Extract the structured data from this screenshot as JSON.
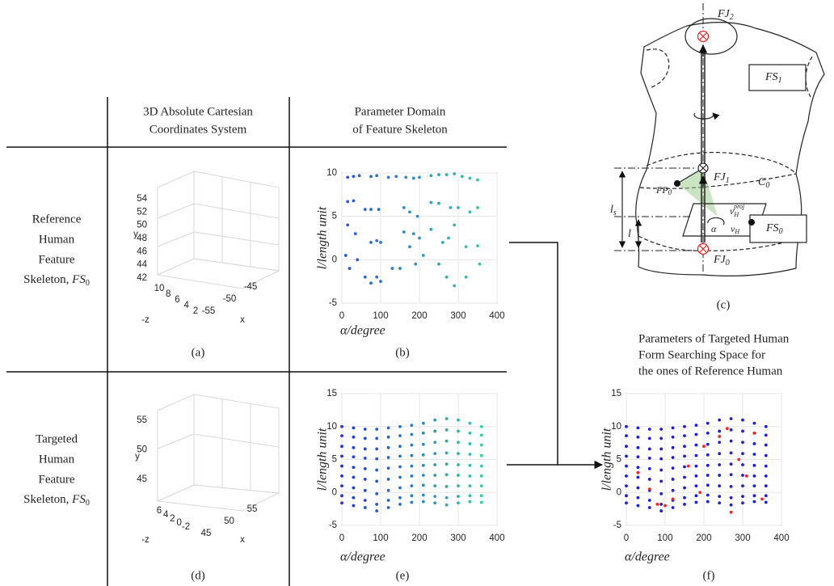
{
  "table": {
    "headers": [
      [
        "3D Absolute Cartesian",
        "Coordinates System"
      ],
      [
        "Parameter Domain",
        "of Feature Skeleton"
      ]
    ],
    "rows": [
      {
        "label": [
          "Reference",
          "Human",
          "Feature",
          "Skeleton, "
        ],
        "symbol": {
          "base": "FS",
          "sub": "0"
        }
      },
      {
        "label": [
          "Targeted",
          "Human",
          "Feature",
          "Skeleton, "
        ],
        "symbol": {
          "base": "FS",
          "sub": "0"
        }
      }
    ]
  },
  "plots_3d": [
    {
      "caption": "(a)",
      "xlabel": "x",
      "ylabel": "y",
      "zlabel": "-z",
      "xticks": [
        -55,
        -50,
        -45
      ],
      "yticks": [
        54,
        52,
        50,
        48,
        46,
        44,
        42
      ],
      "zticks": [
        10,
        8,
        6,
        4,
        2
      ]
    },
    {
      "caption": "(d)",
      "xlabel": "x",
      "ylabel": "y",
      "zlabel": "-z",
      "xticks": [
        45,
        50,
        55
      ],
      "yticks": [
        55,
        50,
        45
      ],
      "zticks": [
        6,
        4,
        2,
        0,
        -2
      ]
    }
  ],
  "diagram": {
    "caption": "(c)",
    "labels": {
      "fj2": {
        "base": "FJ",
        "sub": "2"
      },
      "fs1": {
        "base": "FS",
        "sub": "1"
      },
      "fj1": {
        "base": "FJ",
        "sub": "1"
      },
      "c0": {
        "base": "C",
        "sub": "0"
      },
      "fp0": {
        "base": "FP",
        "sub": "0"
      },
      "ls": {
        "base": "l",
        "sub": "s"
      },
      "l": {
        "base": "l"
      },
      "vproj": {
        "base": "v",
        "sub": "H",
        "sup": "proj"
      },
      "alpha": {
        "base": "α"
      },
      "vh": {
        "base": "v",
        "sub": "H"
      },
      "fs0": {
        "base": "FS",
        "sub": "0"
      },
      "fj0": {
        "base": "FJ",
        "sub": "0"
      }
    }
  },
  "chart_data": [
    {
      "type": "scatter",
      "caption": "(b)",
      "xlabel": "α/degree",
      "ylabel": "l/length unit",
      "xlim": [
        0,
        400
      ],
      "ylim": [
        -5,
        10
      ],
      "xticks": [
        0,
        100,
        200,
        300,
        400
      ],
      "yticks": [
        -5,
        0,
        5,
        10
      ],
      "grid": true,
      "color_scale": [
        "#2a50e0",
        "#33d9a0"
      ],
      "x": [
        15,
        30,
        45,
        75,
        90,
        120,
        140,
        165,
        185,
        200,
        230,
        250,
        270,
        290,
        310,
        330,
        350,
        15,
        30,
        60,
        75,
        95,
        160,
        175,
        195,
        230,
        250,
        280,
        300,
        330,
        350,
        15,
        35,
        75,
        90,
        100,
        160,
        185,
        200,
        230,
        260,
        275,
        290,
        320,
        350,
        10,
        20,
        40,
        60,
        75,
        90,
        100,
        130,
        150,
        175,
        190,
        210,
        250,
        270,
        290,
        320,
        355
      ],
      "series": [
        {
          "values": [
            9.5,
            9.6,
            9.7,
            9.6,
            9.7,
            9.5,
            9.6,
            9.5,
            9.4,
            9.5,
            9.7,
            9.8,
            9.8,
            9.9,
            9.6,
            9.4,
            9.2,
            6.7,
            6.8,
            5.8,
            5.8,
            5.8,
            6.0,
            5.5,
            5.0,
            6.6,
            6.5,
            6.0,
            6.0,
            5.5,
            6.0,
            4,
            3,
            2,
            2.2,
            2,
            3.2,
            3,
            2.5,
            3.5,
            2,
            2.5,
            4,
            1.5,
            1.6,
            0.5,
            -1,
            0,
            -2,
            -2.7,
            -2,
            -2.5,
            -1,
            -1,
            1.5,
            -0.5,
            0.5,
            -0.5,
            -2,
            -3,
            -2,
            -0.5
          ]
        }
      ]
    },
    {
      "type": "scatter",
      "caption": "(e)",
      "xlabel": "α/degree",
      "ylabel": "l/length unit",
      "xlim": [
        0,
        400
      ],
      "ylim": [
        -5,
        15
      ],
      "xticks": [
        0,
        100,
        200,
        300,
        400
      ],
      "yticks": [
        -5,
        0,
        5,
        10,
        15
      ],
      "grid": true,
      "color_scale": [
        "#2030e0",
        "#30e0a0"
      ],
      "x": [
        0,
        30,
        60,
        90,
        120,
        150,
        180,
        210,
        240,
        270,
        300,
        330,
        360
      ],
      "series": [
        {
          "values": [
            10,
            9.8,
            9.6,
            9.6,
            9.8,
            10,
            10.2,
            10.5,
            11,
            11.2,
            11,
            10.5,
            10
          ]
        },
        {
          "values": [
            8.6,
            8.4,
            8.2,
            8.2,
            8.4,
            8.6,
            8.8,
            9,
            9.3,
            9.5,
            9.3,
            9,
            8.7
          ]
        },
        {
          "values": [
            7,
            6.8,
            6.6,
            6.6,
            6.8,
            7,
            7.2,
            7.3,
            7.6,
            7.8,
            7.6,
            7.4,
            7.2
          ]
        },
        {
          "values": [
            5.5,
            5.4,
            5.2,
            5.1,
            5.3,
            5.5,
            5.6,
            5.7,
            5.9,
            6,
            5.9,
            5.8,
            5.6
          ]
        },
        {
          "values": [
            4,
            3.8,
            3.6,
            3.4,
            3.7,
            3.9,
            4,
            4.1,
            4.2,
            4.3,
            4.2,
            4.1,
            4
          ]
        },
        {
          "values": [
            2.5,
            2.3,
            2,
            1.7,
            2,
            2.3,
            2.5,
            2.6,
            2.6,
            2.7,
            2.6,
            2.5,
            2.5
          ]
        },
        {
          "values": [
            1,
            0.7,
            0.3,
            -0.2,
            0.3,
            0.7,
            1,
            1.1,
            1,
            0.9,
            1,
            1,
            1
          ]
        },
        {
          "values": [
            -0.5,
            -0.8,
            -1.2,
            -1.8,
            -1.2,
            -0.8,
            -0.5,
            -0.4,
            -0.6,
            -0.8,
            -0.6,
            -0.5,
            -0.5
          ]
        },
        {
          "values": [
            -1.6,
            -2,
            -2.3,
            -2.8,
            -2.3,
            -1.8,
            -1.5,
            -1.4,
            -1.6,
            -1.9,
            -1.6,
            -1.4,
            -1.5
          ]
        }
      ]
    },
    {
      "type": "scatter",
      "caption": "(f)",
      "title": [
        "Parameters of Targeted Human",
        "Form Searching Space for",
        "the ones of Reference Human"
      ],
      "xlabel": "α/degree",
      "ylabel": "l/length unit",
      "xlim": [
        0,
        400
      ],
      "ylim": [
        -5,
        15
      ],
      "xticks": [
        0,
        100,
        200,
        300,
        400
      ],
      "yticks": [
        -5,
        0,
        5,
        10,
        15
      ],
      "grid": true,
      "x": [
        0,
        30,
        60,
        90,
        120,
        150,
        180,
        210,
        240,
        270,
        300,
        330,
        360
      ],
      "series": [
        {
          "color": "#1c1ce8",
          "values": [
            10,
            9.8,
            9.6,
            9.6,
            9.8,
            10,
            10.2,
            10.5,
            11,
            11.2,
            11,
            10.5,
            10
          ]
        },
        {
          "color": "#1c1ce8",
          "values": [
            8.6,
            8.4,
            8.2,
            8.2,
            8.4,
            8.6,
            8.8,
            9,
            9.3,
            9.5,
            9.3,
            9,
            8.7
          ]
        },
        {
          "color": "#1c1ce8",
          "values": [
            7,
            6.8,
            6.6,
            6.6,
            6.8,
            7,
            7.2,
            7.3,
            7.6,
            7.8,
            7.6,
            7.4,
            7.2
          ]
        },
        {
          "color": "#1c1ce8",
          "values": [
            5.5,
            5.4,
            5.2,
            5.1,
            5.3,
            5.5,
            5.6,
            5.7,
            5.9,
            6,
            5.9,
            5.8,
            5.6
          ]
        },
        {
          "color": "#1c1ce8",
          "values": [
            4,
            3.8,
            3.6,
            3.4,
            3.7,
            3.9,
            4,
            4.1,
            4.2,
            4.3,
            4.2,
            4.1,
            4
          ]
        },
        {
          "color": "#1c1ce8",
          "values": [
            2.5,
            2.3,
            2,
            1.7,
            2,
            2.3,
            2.5,
            2.6,
            2.6,
            2.7,
            2.6,
            2.5,
            2.5
          ]
        },
        {
          "color": "#1c1ce8",
          "values": [
            1,
            0.7,
            0.3,
            -0.2,
            0.3,
            0.7,
            1,
            1.1,
            1,
            0.9,
            1,
            1,
            1
          ]
        },
        {
          "color": "#1c1ce8",
          "values": [
            -0.5,
            -0.8,
            -1.2,
            -1.8,
            -1.2,
            -0.8,
            -0.5,
            -0.4,
            -0.6,
            -0.8,
            -0.6,
            -0.5,
            -0.5
          ]
        },
        {
          "color": "#1c1ce8",
          "values": [
            -1.6,
            -2,
            -2.3,
            -2.8,
            -2.3,
            -1.8,
            -1.5,
            -1.4,
            -1.6,
            -1.9,
            -1.6,
            -1.4,
            -1.5
          ]
        },
        {
          "color": "#ff2020",
          "x": [
            30,
            60,
            80,
            100,
            120,
            160,
            190,
            200,
            240,
            260,
            270,
            290,
            310,
            330,
            350
          ],
          "values": [
            3,
            0.5,
            -1.8,
            -2,
            -1,
            4,
            0,
            7,
            8.5,
            9.7,
            -3,
            5,
            2.5,
            9,
            -1
          ]
        }
      ]
    }
  ]
}
